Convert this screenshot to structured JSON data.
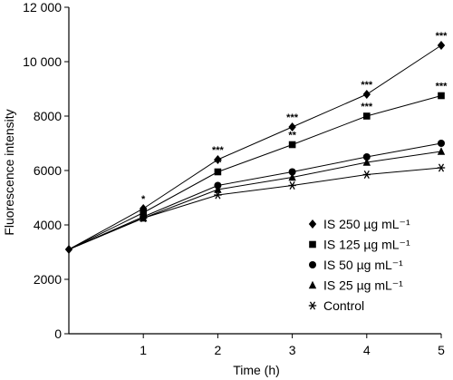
{
  "chart_data": {
    "type": "line",
    "title": "",
    "xlabel": "Time (h)",
    "ylabel": "Fluorescence intensity",
    "xlim": [
      0,
      5
    ],
    "ylim": [
      0,
      12000
    ],
    "x": [
      0,
      1,
      2,
      3,
      4,
      5
    ],
    "x_ticks": [
      1,
      2,
      3,
      4,
      5
    ],
    "x_tick_labels": [
      "1",
      "2",
      "3",
      "4",
      "5"
    ],
    "y_ticks": [
      0,
      2000,
      4000,
      6000,
      8000,
      10000,
      12000
    ],
    "y_tick_labels": [
      "0",
      "2000",
      "4000",
      "6000",
      "8000",
      "10 000",
      "12 000"
    ],
    "grid": false,
    "legend_position": "bottom-right",
    "series": [
      {
        "name": "IS 250 µg mL⁻¹",
        "marker": "diamond",
        "values": [
          3100,
          4600,
          6400,
          7600,
          8800,
          10600
        ],
        "significance": [
          "",
          "*",
          "***",
          "***",
          "***",
          "***"
        ]
      },
      {
        "name": "IS 125 µg mL⁻¹",
        "marker": "square",
        "values": [
          3100,
          4450,
          5950,
          6950,
          8000,
          8750
        ],
        "significance": [
          "",
          "",
          "**",
          "**",
          "***",
          "***"
        ]
      },
      {
        "name": "IS 50 µg mL⁻¹",
        "marker": "circle",
        "values": [
          3100,
          4300,
          5450,
          5950,
          6500,
          7000
        ],
        "significance": [
          "",
          "",
          "",
          "",
          "",
          ""
        ]
      },
      {
        "name": "IS 25 µg mL⁻¹",
        "marker": "triangle",
        "values": [
          3100,
          4250,
          5300,
          5750,
          6300,
          6700
        ],
        "significance": [
          "",
          "",
          "",
          "",
          "",
          ""
        ]
      },
      {
        "name": "Control",
        "marker": "asterisk",
        "values": [
          3100,
          4250,
          5100,
          5450,
          5850,
          6100
        ],
        "significance": [
          "",
          "",
          "",
          "",
          "",
          ""
        ]
      }
    ]
  }
}
